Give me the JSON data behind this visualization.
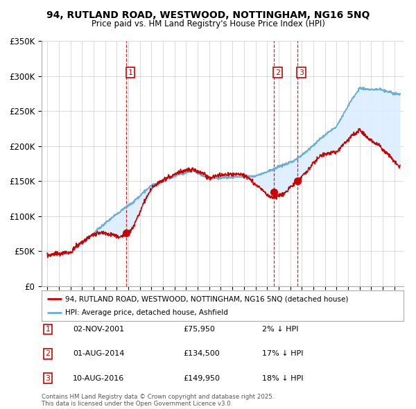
{
  "title_line1": "94, RUTLAND ROAD, WESTWOOD, NOTTINGHAM, NG16 5NQ",
  "title_line2": "Price paid vs. HM Land Registry's House Price Index (HPI)",
  "ylim": [
    0,
    350000
  ],
  "yticks": [
    0,
    50000,
    100000,
    150000,
    200000,
    250000,
    300000,
    350000
  ],
  "ytick_labels": [
    "£0",
    "£50K",
    "£100K",
    "£150K",
    "£200K",
    "£250K",
    "£300K",
    "£350K"
  ],
  "xlim_start": 1994.5,
  "xlim_end": 2025.8,
  "hpi_color": "#6baed6",
  "price_color": "#cc0000",
  "fill_color": "#ddeeff",
  "dashed_line_color": "#cc0000",
  "legend_label_price": "94, RUTLAND ROAD, WESTWOOD, NOTTINGHAM, NG16 5NQ (detached house)",
  "legend_label_hpi": "HPI: Average price, detached house, Ashfield",
  "transactions": [
    {
      "num": 1,
      "date": "02-NOV-2001",
      "price": 75950,
      "year": 2001.84,
      "pct": "2% ↓ HPI"
    },
    {
      "num": 2,
      "date": "01-AUG-2014",
      "price": 134500,
      "year": 2014.58,
      "pct": "17% ↓ HPI"
    },
    {
      "num": 3,
      "date": "10-AUG-2016",
      "price": 149950,
      "year": 2016.61,
      "pct": "18% ↓ HPI"
    }
  ],
  "footnote": "Contains HM Land Registry data © Crown copyright and database right 2025.\nThis data is licensed under the Open Government Licence v3.0.",
  "background_color": "#ffffff",
  "grid_color": "#cccccc"
}
